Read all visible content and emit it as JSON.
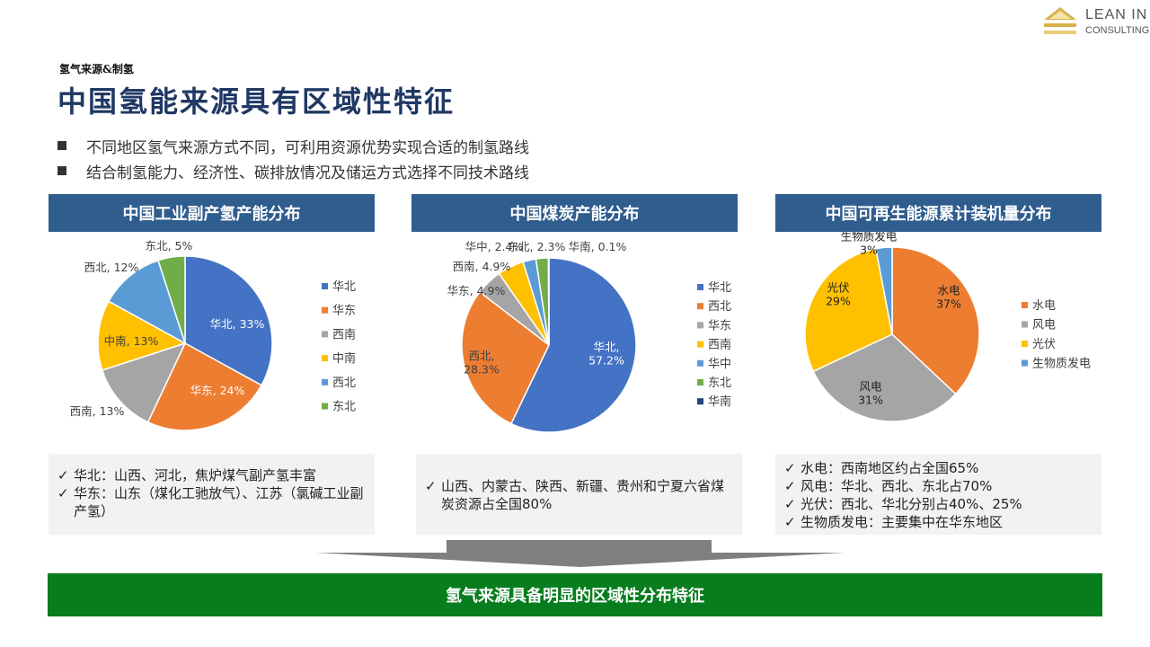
{
  "logo": {
    "line1": "LEAN IN",
    "line2": "CONSULTING"
  },
  "section_tag": "氢气来源&制氢",
  "title": "中国氢能来源具有区域性特征",
  "bullets": [
    "不同地区氢气来源方式不同，可利用资源优势实现合适的制氢路线",
    "结合制氢能力、经济性、碳排放情况及储运方式选择不同技术路线"
  ],
  "panels": [
    {
      "header": "中国工业副产氢产能分布"
    },
    {
      "header": "中国煤炭产能分布"
    },
    {
      "header": "中国可再生能源累计装机量分布"
    }
  ],
  "chart_data": [
    {
      "type": "pie",
      "title": "中国工业副产氢产能分布",
      "labels": [
        "华北",
        "华东",
        "西南",
        "中南",
        "西北",
        "东北"
      ],
      "values": [
        33,
        24,
        13,
        13,
        12,
        5
      ],
      "data_labels": [
        "华北, 33%",
        "华东, 24%",
        "西南, 13%",
        "中南, 13%",
        "西北, 12%",
        "东北, 5%"
      ],
      "colors": [
        "#4472c4",
        "#ed7d31",
        "#a5a5a5",
        "#ffc000",
        "#5b9bd5",
        "#70ad47"
      ],
      "legend": [
        "华北",
        "华东",
        "西南",
        "中南",
        "西北",
        "东北"
      ],
      "legend_position": "right"
    },
    {
      "type": "pie",
      "title": "中国煤炭产能分布",
      "labels": [
        "华北",
        "西北",
        "华东",
        "西南",
        "华中",
        "东北",
        "华南"
      ],
      "values": [
        57.2,
        28.3,
        4.9,
        4.9,
        2.4,
        2.3,
        0.1
      ],
      "data_labels": [
        "华北,\n57.2%",
        "西北,\n28.3%",
        "华东, 4.9%",
        "西南, 4.9%",
        "华中, 2.4%",
        "东北, 2.3%",
        "华南, 0.1%"
      ],
      "colors": [
        "#4472c4",
        "#ed7d31",
        "#a5a5a5",
        "#ffc000",
        "#5b9bd5",
        "#70ad47",
        "#264478"
      ],
      "legend": [
        "华北",
        "西北",
        "华东",
        "西南",
        "华中",
        "东北",
        "华南"
      ],
      "legend_position": "right"
    },
    {
      "type": "pie",
      "title": "中国可再生能源累计装机量分布",
      "labels": [
        "水电",
        "风电",
        "光伏",
        "生物质发电"
      ],
      "values": [
        37,
        31,
        29,
        3
      ],
      "data_labels": [
        "水电\n37%",
        "风电\n31%",
        "光伏\n29%",
        "生物质发电\n3%"
      ],
      "colors": [
        "#ed7d31",
        "#a5a5a5",
        "#ffc000",
        "#5b9bd5"
      ],
      "legend": [
        "水电",
        "风电",
        "光伏",
        "生物质发电"
      ],
      "legend_position": "right"
    }
  ],
  "notes": [
    [
      "华北：山西、河北，焦炉煤气副产氢丰富",
      "华东：山东（煤化工驰放气）、江苏（氯碱工业副产氢）"
    ],
    [
      "山西、内蒙古、陕西、新疆、贵州和宁夏六省煤炭资源占全国80%"
    ],
    [
      "水电：西南地区约占全国65%",
      "风电：华北、西北、东北占70%",
      "光伏：西北、华北分别占40%、25%",
      "生物质发电：主要集中在华东地区"
    ]
  ],
  "check_mark": "✓",
  "conclusion": "氢气来源具备明显的区域性分布特征"
}
